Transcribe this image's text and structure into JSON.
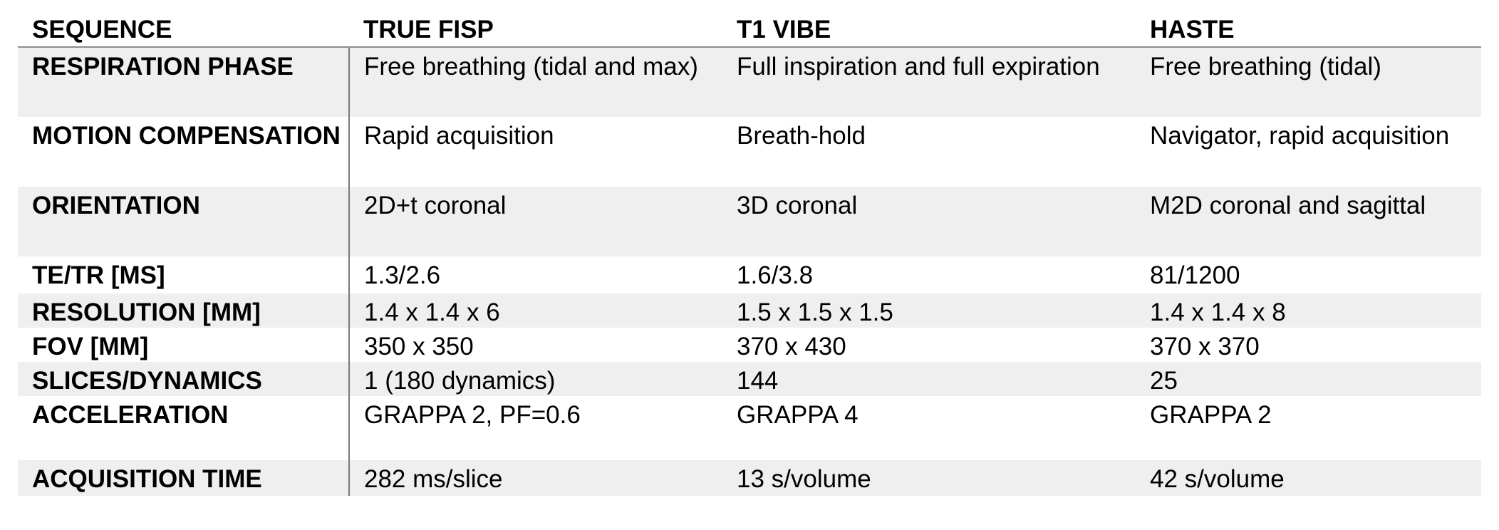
{
  "table": {
    "headers": [
      "SEQUENCE",
      "TRUE FISP",
      "T1 VIBE",
      "HASTE"
    ],
    "rows": [
      {
        "label": "RESPIRATION PHASE",
        "values": [
          "Free breathing (tidal and max)",
          "Full inspiration and full expiration",
          "Free breathing (tidal)"
        ]
      },
      {
        "label": "MOTION COMPENSATION",
        "values": [
          "Rapid acquisition",
          "Breath-hold",
          "Navigator, rapid acquisition"
        ]
      },
      {
        "label": "ORIENTATION",
        "values": [
          "2D+t coronal",
          "3D coronal",
          "M2D coronal and sagittal"
        ]
      },
      {
        "label": "TE/TR [MS]",
        "values": [
          "1.3/2.6",
          "1.6/3.8",
          "81/1200"
        ]
      },
      {
        "label": "RESOLUTION [MM]",
        "values": [
          "1.4 x 1.4 x 6",
          "1.5 x 1.5 x 1.5",
          "1.4 x 1.4 x 8"
        ]
      },
      {
        "label": "FOV [MM]",
        "values": [
          "350 x 350",
          "370 x 430",
          "370 x 370"
        ]
      },
      {
        "label": "SLICES/DYNAMICS",
        "values": [
          "1 (180 dynamics)",
          "144",
          "25"
        ]
      },
      {
        "label": "ACCELERATION",
        "values": [
          "GRAPPA 2, PF=0.6",
          "GRAPPA 4",
          "GRAPPA 2"
        ]
      },
      {
        "label": "ACQUISITION TIME",
        "values": [
          "282 ms/slice",
          "13 s/volume",
          "42 s/volume"
        ]
      }
    ]
  }
}
